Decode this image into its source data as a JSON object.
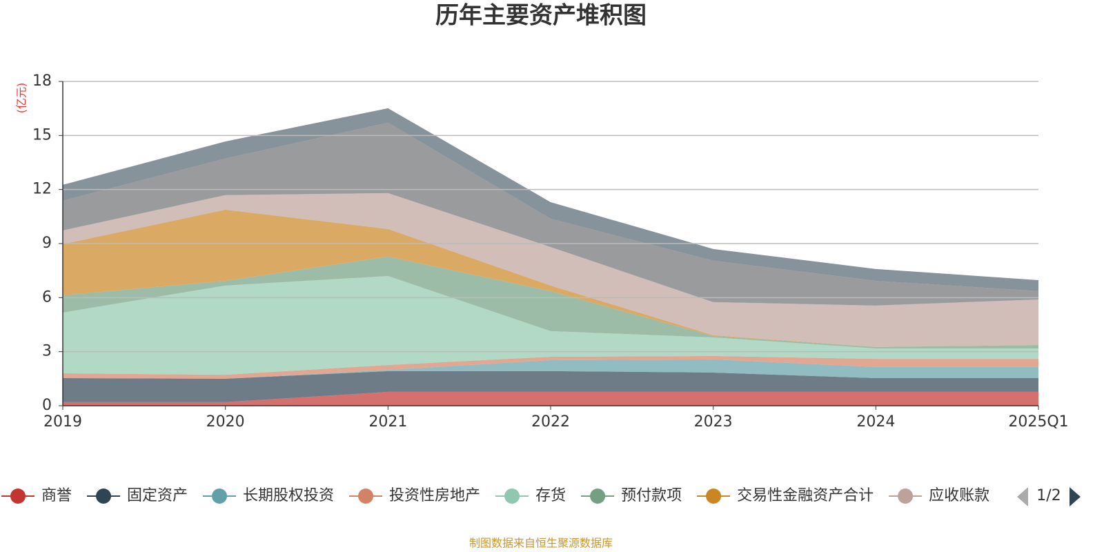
{
  "chart_data": {
    "type": "stacked_area",
    "title": "历年主要资产堆积图",
    "y_unit": "(亿元)",
    "source": "制图数据来自恒生聚源数据库",
    "legend_page": "1/2",
    "categories": [
      "2019",
      "2020",
      "2021",
      "2022",
      "2023",
      "2024",
      "2025Q1"
    ],
    "ylim": [
      0,
      18
    ],
    "yticks": [
      0,
      3,
      6,
      9,
      12,
      15,
      18
    ],
    "grid": true,
    "series": [
      {
        "name": "商誉",
        "color": "#c23531",
        "values": [
          0.2,
          0.2,
          0.77,
          0.77,
          0.77,
          0.77,
          0.77
        ]
      },
      {
        "name": "固定资产",
        "color": "#2f4554",
        "values": [
          1.33,
          1.3,
          1.15,
          1.15,
          1.07,
          0.76,
          0.76
        ]
      },
      {
        "name": "长期股权投资",
        "color": "#61a0a8",
        "values": [
          0,
          0,
          0.07,
          0.61,
          0.73,
          0.62,
          0.62
        ]
      },
      {
        "name": "投资性房地产",
        "color": "#d48265",
        "values": [
          0.27,
          0.22,
          0.27,
          0.19,
          0.19,
          0.45,
          0.45
        ]
      },
      {
        "name": "存货",
        "color": "#91c7ae",
        "values": [
          3.37,
          4.95,
          4.94,
          1.42,
          1.03,
          0.58,
          0.58
        ]
      },
      {
        "name": "预付款项",
        "color": "#749f83",
        "values": [
          0.96,
          0.26,
          1.08,
          2.22,
          0.08,
          0.08,
          0.19
        ]
      },
      {
        "name": "交易性金融资产合计",
        "color": "#ca8622",
        "values": [
          2.84,
          3.95,
          1.53,
          0.31,
          0.04,
          0,
          0
        ]
      },
      {
        "name": "应收账款",
        "color": "#bda29a",
        "values": [
          0.76,
          0.81,
          1.99,
          2.14,
          1.84,
          2.3,
          2.53
        ]
      },
      {
        "color": "#6e7074",
        "values": [
          1.65,
          2.03,
          3.91,
          1.57,
          2.3,
          1.37,
          0.46
        ]
      },
      {
        "color": "#546570",
        "values": [
          0.88,
          0.95,
          0.8,
          0.92,
          0.65,
          0.66,
          0.61
        ]
      }
    ]
  }
}
